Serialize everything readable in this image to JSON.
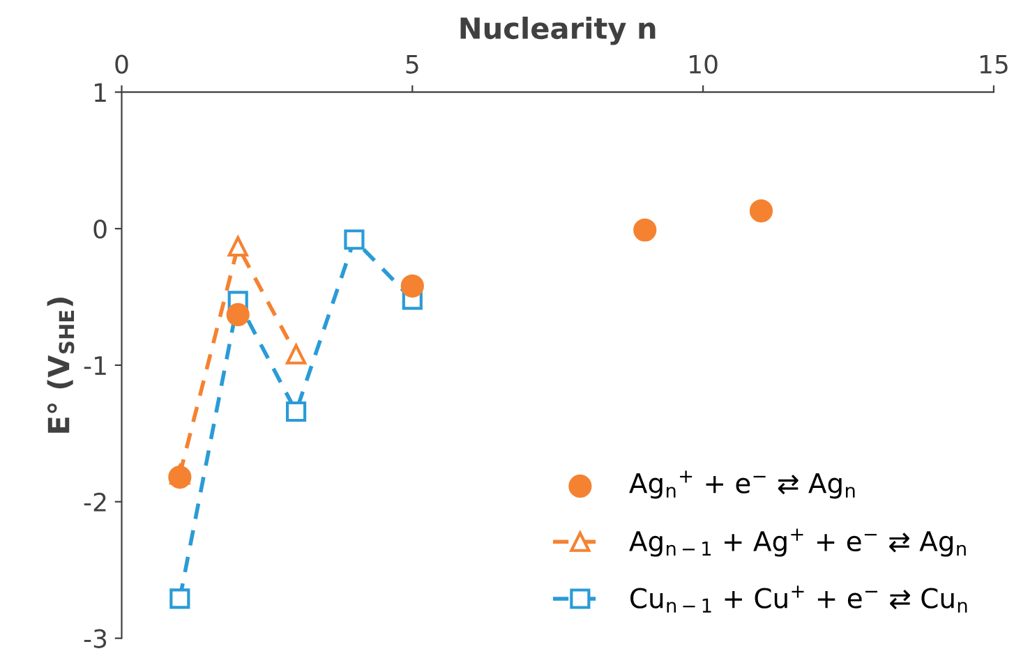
{
  "chart_data": {
    "type": "line",
    "xlabel": "Nuclearity n",
    "ylabel": "E° (V$_{SHE}$)",
    "xlim": [
      0,
      15
    ],
    "xticks": [
      0,
      5,
      10,
      15
    ],
    "ylim": [
      -3,
      1
    ],
    "yticks": [
      -3,
      -2,
      -1,
      0,
      1
    ],
    "grid": false,
    "legend": "bottom right",
    "series": [
      {
        "name": "Ag$_{n}$$^{+}$ + e$^{−}$ ⇄ Ag$_{n}$",
        "type": "scatter",
        "marker": "circle",
        "color": "#f58231",
        "x": [
          1,
          2,
          5,
          9,
          11
        ],
        "values": [
          -1.82,
          -0.63,
          -0.42,
          -0.01,
          0.13
        ]
      },
      {
        "name": "Ag$_{n−1}$ + Ag$^{+}$ + e$^{−}$ ⇄ Ag$_{n}$",
        "marker": "triangle",
        "line_style": "dashed",
        "color": "#f58231",
        "x": [
          1,
          2,
          3
        ],
        "values": [
          -1.8,
          -0.13,
          -0.92
        ]
      },
      {
        "name": "Cu$_{n−1}$ + Cu$^{+}$ + e$^{−}$ ⇄ Cu$_{n}$",
        "marker": "square",
        "line_style": "dashed",
        "color": "#2a9bd7",
        "x": [
          1,
          2,
          3,
          4,
          5
        ],
        "values": [
          -2.71,
          -0.53,
          -1.34,
          -0.08,
          -0.52
        ]
      }
    ]
  }
}
